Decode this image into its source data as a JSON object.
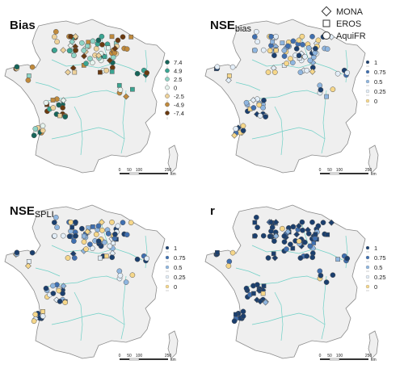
{
  "panels": [
    {
      "id": "bias",
      "title": "Bias",
      "title_sub": "",
      "legend": {
        "type": "diverging",
        "labels": [
          "7.4",
          "4.9",
          "2.5",
          "0",
          "-2.5",
          "-4.9",
          "-7.4"
        ],
        "colors": [
          "#16655a",
          "#3aa592",
          "#8fd4c6",
          "#e6f3ee",
          "#eed29a",
          "#c08a3c",
          "#6b3a10"
        ]
      }
    },
    {
      "id": "nse_bias",
      "title": "NSE",
      "title_sub": "bias",
      "legend": {
        "type": "performance",
        "labels": [
          "1",
          "0.75",
          "0.5",
          "0.25",
          "0"
        ],
        "colors": [
          "#1b3f6e",
          "#3f6fb0",
          "#8fb6e0",
          "#e3eef8",
          "#f6d78a"
        ]
      }
    },
    {
      "id": "nse_spli",
      "title": "NSE",
      "title_sub": "SPLI",
      "legend": {
        "type": "performance",
        "labels": [
          "1",
          "0.75",
          "0.5",
          "0.25",
          "0"
        ],
        "colors": [
          "#1b3f6e",
          "#3f6fb0",
          "#8fb6e0",
          "#e3eef8",
          "#f6d78a"
        ]
      }
    },
    {
      "id": "r",
      "title": "r",
      "title_sub": "",
      "legend": {
        "type": "performance",
        "labels": [
          "1",
          "0.75",
          "0.5",
          "0.25",
          "0"
        ],
        "colors": [
          "#1b3f6e",
          "#3f6fb0",
          "#8fb6e0",
          "#e3eef8",
          "#f6d78a"
        ]
      }
    }
  ],
  "model_legend": [
    {
      "shape": "diamond",
      "label": "MONA"
    },
    {
      "shape": "square",
      "label": "EROS"
    },
    {
      "shape": "circle",
      "label": "AquiFR"
    }
  ],
  "scale_bar": {
    "ticks": [
      "0",
      "50",
      "100",
      "250"
    ],
    "unit": "km"
  },
  "colors": {
    "land": "#efefef",
    "coast": "#8a8a8a",
    "river": "#6fd0c6"
  }
}
